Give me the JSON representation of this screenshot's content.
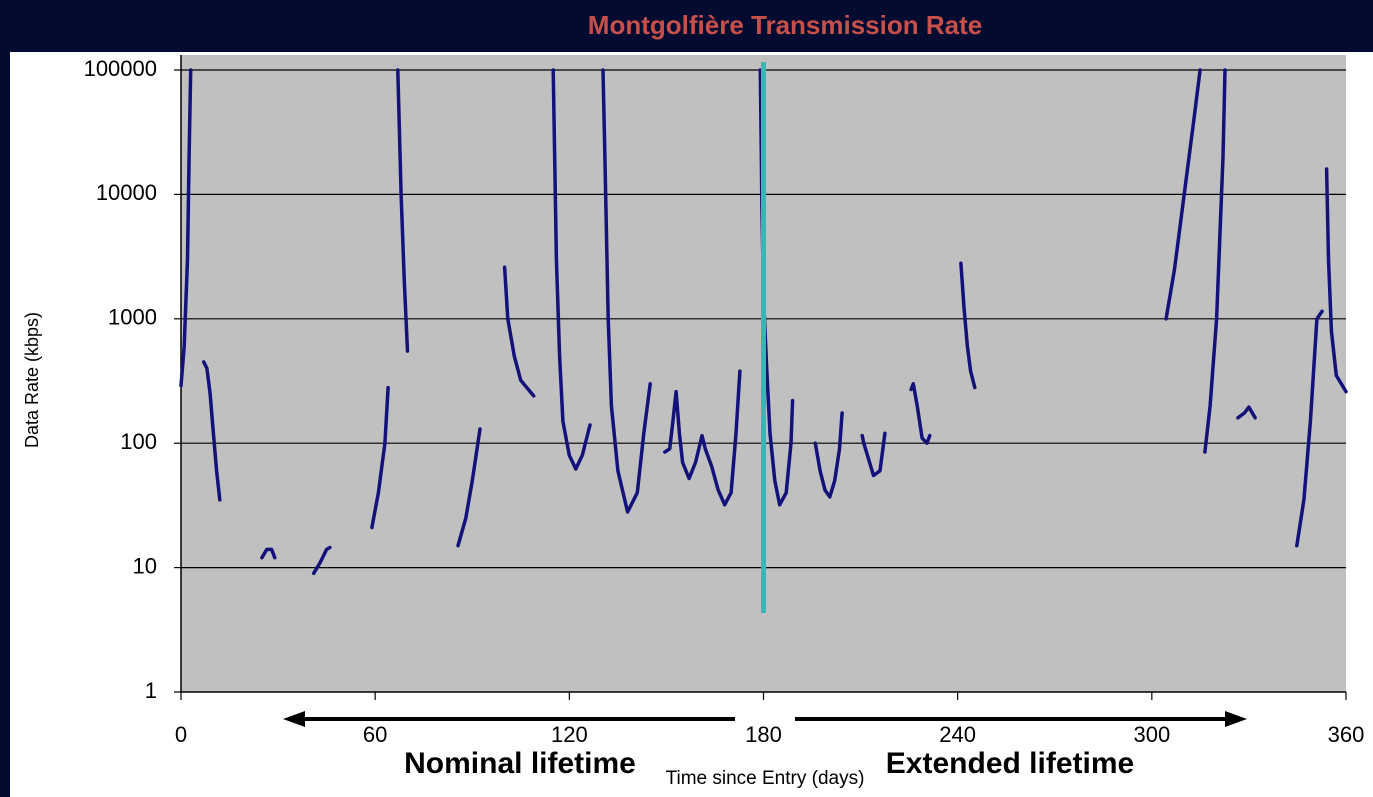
{
  "chart_data": {
    "type": "line",
    "title": "Montgolfière Transmission Rate",
    "x_label": "Time since Entry (days)",
    "y_label": "Data Rate (kbps)",
    "log_y": true,
    "grid": true,
    "xlim": [
      0,
      360
    ],
    "xticks": [
      0,
      60,
      120,
      180,
      240,
      300,
      360
    ],
    "ylim": [
      1,
      100000
    ],
    "yticks": [
      1,
      10,
      100,
      1000,
      10000,
      100000
    ],
    "vline": {
      "x": 180,
      "color": "#3cb4b4"
    },
    "annotations": [
      "Nominal lifetime",
      "Extended lifetime"
    ],
    "series": [
      {
        "name": "Data Rate",
        "color": "#12127a",
        "x": [
          0,
          1,
          2,
          2.5,
          3,
          null,
          7,
          8,
          9,
          10,
          11,
          12,
          null,
          25,
          26.5,
          28,
          29,
          null,
          41,
          43,
          45,
          46,
          null,
          59,
          61,
          63,
          64,
          null,
          67,
          68,
          69,
          70,
          null,
          85.6,
          88,
          90,
          92.4,
          null,
          100,
          101,
          103,
          105,
          109,
          null,
          115,
          116,
          117,
          118,
          120,
          122,
          124,
          126.4,
          null,
          130.4,
          131,
          132,
          133,
          135,
          138,
          141,
          143,
          145,
          null,
          149.5,
          151,
          152,
          153,
          154,
          155,
          157,
          159,
          161,
          162,
          164,
          166,
          168,
          170,
          171.5,
          172.7,
          null,
          179,
          179.5,
          180,
          181,
          182,
          183.5,
          185,
          187,
          188.5,
          189,
          null,
          196,
          197.5,
          199,
          200.5,
          202,
          203.5,
          204.3,
          null,
          210.5,
          211,
          214,
          216,
          217.5,
          null,
          225.6,
          226.3,
          227.5,
          229,
          230.5,
          231.4,
          null,
          241,
          242,
          243,
          244,
          245.3,
          null,
          304.4,
          307,
          310,
          313,
          314.9,
          null,
          316.4,
          318,
          320,
          322,
          322.6,
          null,
          326.6,
          328.6,
          330,
          331.9,
          null,
          344.8,
          347,
          349,
          351,
          352.6,
          null,
          354,
          354.6,
          355.5,
          357,
          360
        ],
        "values": [
          290,
          600,
          3000,
          20000,
          100000,
          null,
          450,
          400,
          250,
          120,
          60,
          35,
          null,
          12,
          14,
          14,
          12,
          null,
          9,
          11,
          14,
          14.5,
          null,
          21,
          40,
          100,
          280,
          null,
          100000,
          10000,
          2000,
          550,
          null,
          15,
          25,
          50,
          130,
          null,
          2600,
          1000,
          500,
          320,
          240,
          null,
          100000,
          3000,
          500,
          150,
          80,
          62,
          80,
          140,
          null,
          100000,
          20000,
          1000,
          200,
          60,
          28,
          40,
          120,
          300,
          null,
          85,
          90,
          150,
          260,
          120,
          70,
          52,
          70,
          115,
          90,
          65,
          42,
          32,
          40,
          120,
          380,
          null,
          100000,
          8000,
          1500,
          400,
          120,
          50,
          32,
          40,
          100,
          220,
          null,
          100,
          60,
          42,
          37,
          50,
          90,
          175,
          null,
          115,
          100,
          55,
          60,
          120,
          null,
          270,
          300,
          200,
          110,
          100,
          115,
          null,
          2800,
          1200,
          600,
          380,
          280,
          null,
          1000,
          2500,
          10000,
          40000,
          100000,
          null,
          85,
          200,
          1000,
          20000,
          100000,
          null,
          160,
          175,
          195,
          160,
          null,
          15,
          35,
          150,
          1000,
          1150,
          null,
          16000,
          3000,
          800,
          350,
          260
        ]
      }
    ]
  }
}
